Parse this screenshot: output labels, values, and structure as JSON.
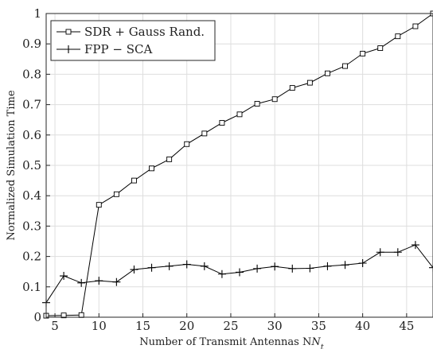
{
  "chart_data": {
    "type": "line",
    "title": "",
    "xlabel": "Number of Transmit Antennas N",
    "xlabel_subscript": "t",
    "ylabel": "Normalized Simulation Time",
    "xlim": [
      4,
      48
    ],
    "ylim": [
      0,
      1
    ],
    "xticks": [
      5,
      10,
      15,
      20,
      25,
      30,
      35,
      40,
      45
    ],
    "yticks": [
      0,
      0.1,
      0.2,
      0.3,
      0.4,
      0.5,
      0.6,
      0.7,
      0.8,
      0.9,
      1
    ],
    "ytick_labels": [
      "0",
      "0.1",
      "0.2",
      "0.3",
      "0.4",
      "0.5",
      "0.6",
      "0.7",
      "0.8",
      "0.9",
      "1"
    ],
    "grid": true,
    "legend_position": "top-left",
    "x": [
      4,
      6,
      8,
      10,
      12,
      14,
      16,
      18,
      20,
      22,
      24,
      26,
      28,
      30,
      32,
      34,
      36,
      38,
      40,
      42,
      44,
      46,
      48
    ],
    "series": [
      {
        "name": "SDR + Gauss Rand.",
        "marker": "square",
        "color": "#000000",
        "values": [
          0.005,
          0.006,
          0.007,
          0.37,
          0.405,
          0.45,
          0.49,
          0.52,
          0.57,
          0.605,
          0.64,
          0.668,
          0.703,
          0.718,
          0.755,
          0.772,
          0.803,
          0.827,
          0.868,
          0.886,
          0.925,
          0.958,
          1.0
        ]
      },
      {
        "name": "FPP − SCA",
        "marker": "plus",
        "color": "#000000",
        "values": [
          0.048,
          0.136,
          0.113,
          0.12,
          0.116,
          0.157,
          0.163,
          0.168,
          0.174,
          0.168,
          0.142,
          0.148,
          0.16,
          0.167,
          0.16,
          0.161,
          0.168,
          0.172,
          0.178,
          0.214,
          0.214,
          0.238,
          0.163
        ]
      }
    ]
  }
}
